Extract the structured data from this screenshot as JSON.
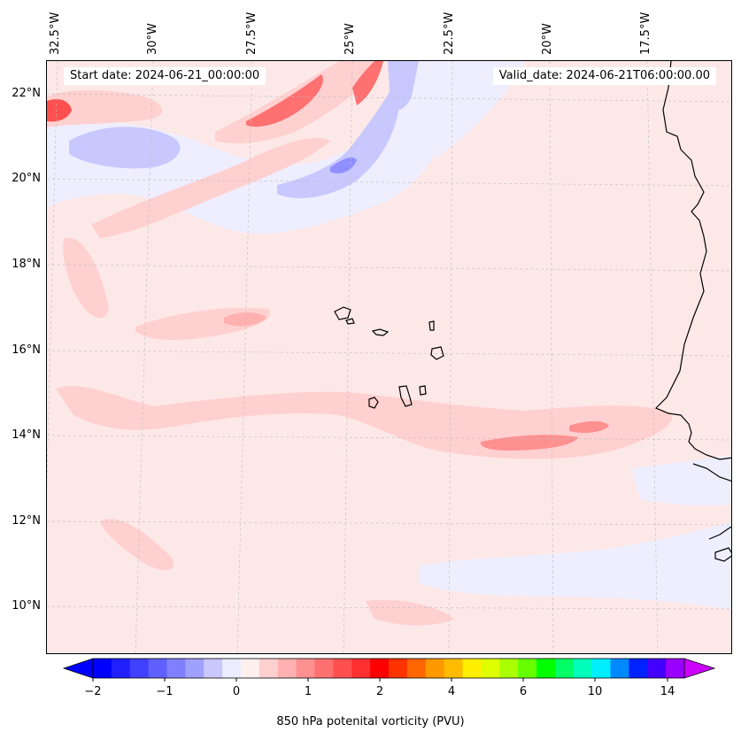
{
  "header": {
    "start_label": "Start date: 2024-06-21_00:00:00",
    "valid_label": "Valid_date: 2024-06-21T06:00:00.00"
  },
  "map": {
    "lon_ticks": [
      "32.5°W",
      "30°W",
      "27.5°W",
      "25°W",
      "22.5°W",
      "20°W",
      "17.5°W"
    ],
    "lat_ticks": [
      "22°N",
      "20°N",
      "18°N",
      "16°N",
      "14°N",
      "12°N",
      "10°N"
    ],
    "grid": true,
    "coastlines": true,
    "colors": {
      "background_field": "#fde8e8",
      "weak_positive": "#ffd0d0",
      "moderate_positive": "#ff9a9a",
      "strong_positive": "#ff4a4a",
      "weak_negative": "#eeeeff",
      "moderate_negative": "#c8c8ff",
      "strong_negative": "#8f8fff"
    }
  },
  "colorbar": {
    "label": "850 hPa potenital vorticity (PVU)",
    "tick_labels": [
      "−2",
      "−1",
      "0",
      "1",
      "2",
      "4",
      "6",
      "10",
      "14"
    ],
    "extend": "both",
    "colors": [
      "#0000ff",
      "#2020ff",
      "#4040ff",
      "#6060ff",
      "#8080ff",
      "#a0a0ff",
      "#c8c8ff",
      "#ececff",
      "#fff0f0",
      "#ffd0d0",
      "#ffb0b0",
      "#ff9090",
      "#ff7070",
      "#ff5050",
      "#ff3030",
      "#ff0000",
      "#ff3300",
      "#ff6600",
      "#ff9900",
      "#ffbb00",
      "#ffee00",
      "#ddff00",
      "#aaff00",
      "#66ff00",
      "#00ff00",
      "#00ff66",
      "#00ffbb",
      "#00eeff",
      "#0088ff",
      "#0022ff",
      "#4400ff",
      "#9900ff"
    ],
    "under_color": "#0000ff",
    "over_color": "#cc00ff"
  }
}
